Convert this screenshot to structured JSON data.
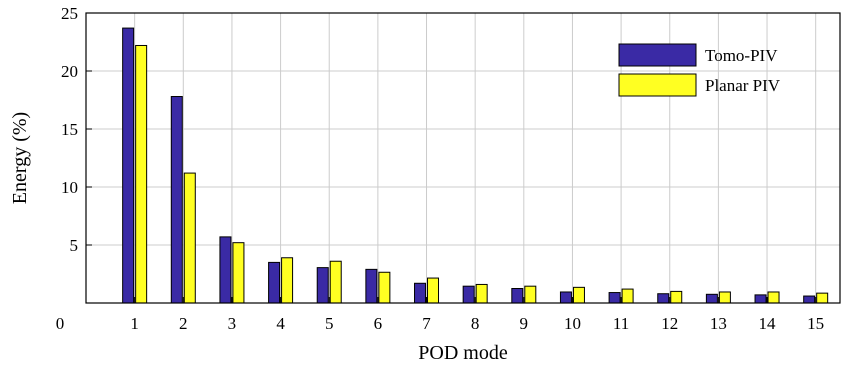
{
  "chart_data": {
    "type": "bar",
    "title": "",
    "xlabel": "POD mode",
    "ylabel": "Energy (%)",
    "xlim": [
      0,
      15.5
    ],
    "ylim": [
      0,
      25
    ],
    "x_origin_label": "0",
    "yticks": [
      5,
      10,
      15,
      20,
      25
    ],
    "categories": [
      "1",
      "2",
      "3",
      "4",
      "5",
      "6",
      "7",
      "8",
      "9",
      "10",
      "11",
      "12",
      "13",
      "14",
      "15"
    ],
    "grid": true,
    "legend_position": "top-right",
    "series": [
      {
        "name": "Tomo-PIV",
        "color": "#3a2aa5",
        "values": [
          23.7,
          17.8,
          5.7,
          3.5,
          3.05,
          2.9,
          1.7,
          1.45,
          1.25,
          0.95,
          0.9,
          0.8,
          0.75,
          0.7,
          0.6
        ]
      },
      {
        "name": "Planar PIV",
        "color": "#ffff22",
        "values": [
          22.2,
          11.2,
          5.2,
          3.9,
          3.6,
          2.65,
          2.15,
          1.6,
          1.45,
          1.35,
          1.2,
          1.0,
          0.95,
          0.95,
          0.85
        ]
      }
    ]
  }
}
